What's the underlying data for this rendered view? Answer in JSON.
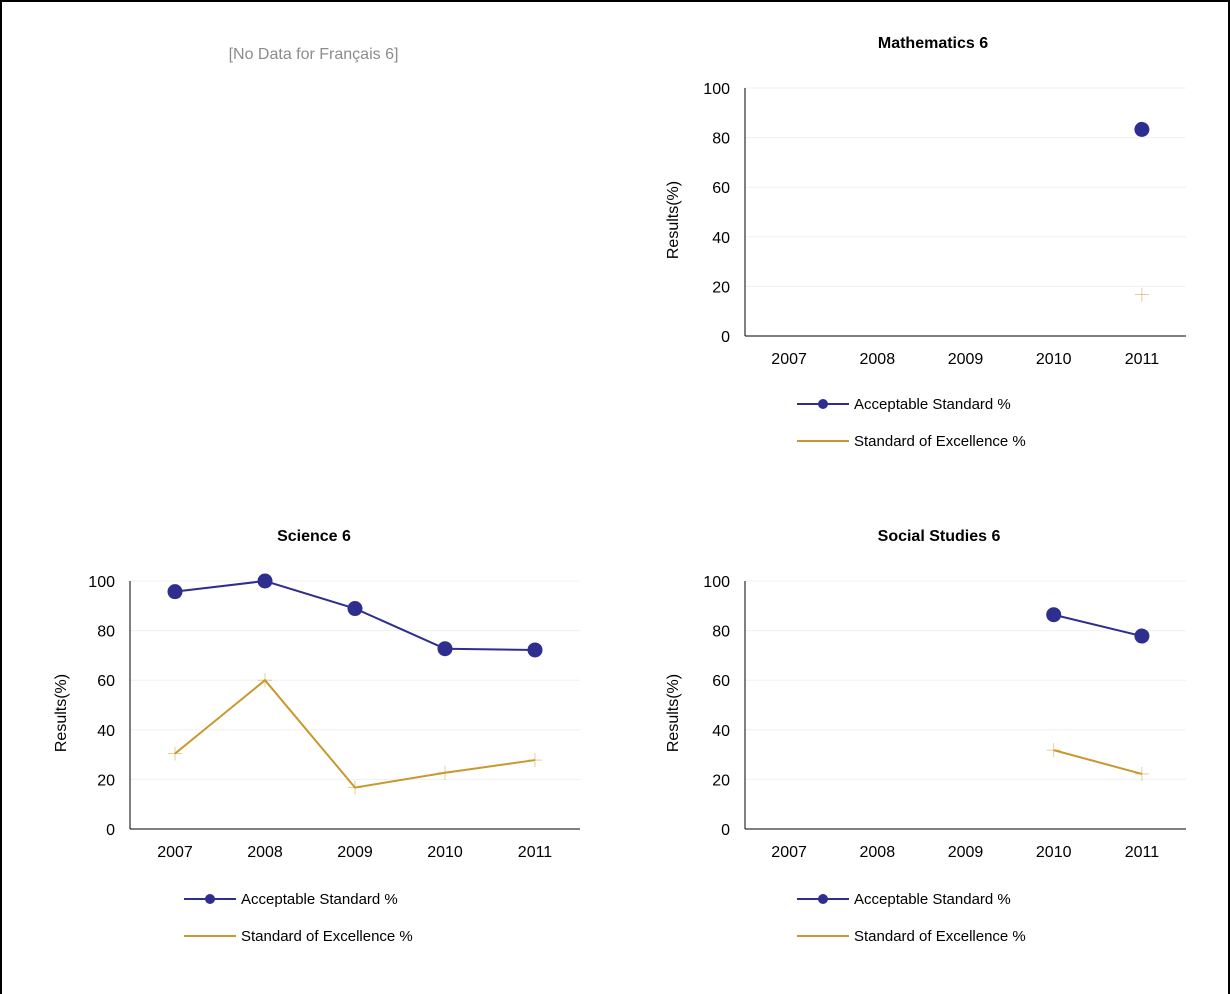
{
  "colors": {
    "acceptable": "#2e2e8f",
    "excellence": "#c9982c",
    "gridline": "#f0f0f0",
    "axis": "#000000",
    "nodata_text": "#8c8c8c"
  },
  "panels": {
    "top_left": {
      "nodata_text": "[No Data for Français 6]"
    }
  },
  "chart_data": [
    {
      "id": "math",
      "type": "line",
      "title": "Mathematics 6",
      "xlabel": "",
      "ylabel": "Results(%)",
      "ylim": [
        0,
        100
      ],
      "yticks": [
        "0",
        "20",
        "40",
        "60",
        "80",
        "100"
      ],
      "categories": [
        "2007",
        "2008",
        "2009",
        "2010",
        "2011"
      ],
      "grid": true,
      "legend": "bottom",
      "series": [
        {
          "name": "Acceptable Standard %",
          "color": "#2e2e8f",
          "marker": "circle",
          "values": [
            null,
            null,
            null,
            null,
            83.3
          ]
        },
        {
          "name": "Standard of Excellence %",
          "color": "#c9982c",
          "marker": "plus",
          "values": [
            null,
            null,
            null,
            null,
            16.7
          ]
        }
      ]
    },
    {
      "id": "science",
      "type": "line",
      "title": "Science 6",
      "xlabel": "",
      "ylabel": "Results(%)",
      "ylim": [
        0,
        100
      ],
      "yticks": [
        "0",
        "20",
        "40",
        "60",
        "80",
        "100"
      ],
      "categories": [
        "2007",
        "2008",
        "2009",
        "2010",
        "2011"
      ],
      "grid": true,
      "legend": "bottom",
      "series": [
        {
          "name": "Acceptable Standard %",
          "color": "#2e2e8f",
          "marker": "circle",
          "values": [
            95.7,
            100,
            88.9,
            72.7,
            72.2
          ]
        },
        {
          "name": "Standard of Excellence %",
          "color": "#c9982c",
          "marker": "plus",
          "values": [
            30.4,
            60,
            16.7,
            22.7,
            27.8
          ]
        }
      ]
    },
    {
      "id": "social",
      "type": "line",
      "title": "Social Studies 6",
      "xlabel": "",
      "ylabel": "Results(%)",
      "ylim": [
        0,
        100
      ],
      "yticks": [
        "0",
        "20",
        "40",
        "60",
        "80",
        "100"
      ],
      "categories": [
        "2007",
        "2008",
        "2009",
        "2010",
        "2011"
      ],
      "grid": true,
      "legend": "bottom",
      "series": [
        {
          "name": "Acceptable Standard %",
          "color": "#2e2e8f",
          "marker": "circle",
          "values": [
            null,
            null,
            null,
            86.4,
            77.8
          ]
        },
        {
          "name": "Standard of Excellence %",
          "color": "#c9982c",
          "marker": "plus",
          "values": [
            null,
            null,
            null,
            31.8,
            22.2
          ]
        }
      ]
    }
  ]
}
